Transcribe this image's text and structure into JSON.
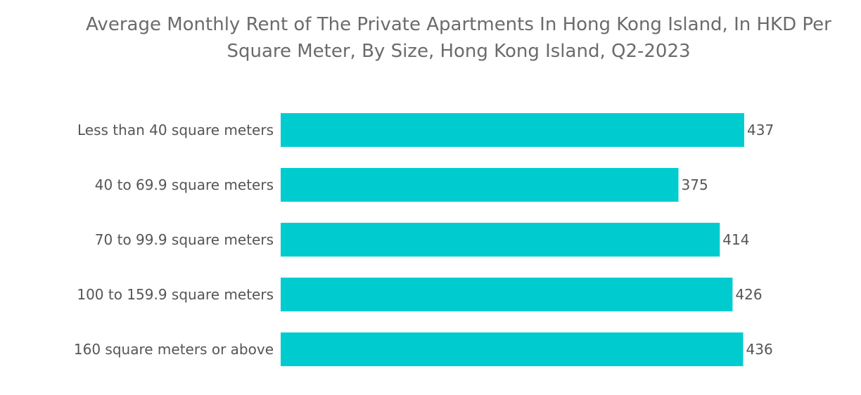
{
  "chart_data": {
    "type": "bar",
    "orientation": "horizontal",
    "title_line1": "Average Monthly Rent of The Private Apartments In Hong Kong Island, In HKD Per",
    "title_line2": "Square Meter, By Size, Hong Kong Island, Q2-2023",
    "categories": [
      "Less than 40 square meters",
      "40 to 69.9 square meters",
      "70 to 99.9 square meters",
      "100 to 159.9 square meters",
      "160 square meters or above"
    ],
    "values": [
      437,
      375,
      414,
      426,
      436
    ],
    "xlim": [
      0,
      437
    ],
    "xlabel": "",
    "ylabel": "",
    "grid": false,
    "legend": "none",
    "bar_color": "#00cccf",
    "text_color": "#555555",
    "title_color": "#6b6b6b"
  }
}
